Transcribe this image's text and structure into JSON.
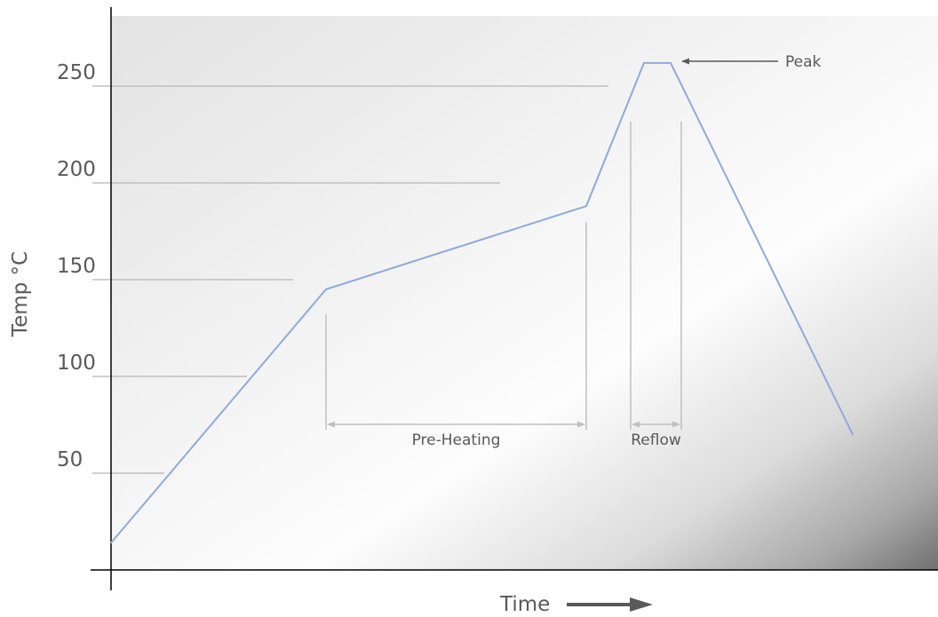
{
  "chart_data": {
    "type": "line",
    "title": "",
    "xlabel": "Time",
    "ylabel": "Temp °C",
    "ylim": [
      0,
      260
    ],
    "y_ticks": [
      50,
      100,
      150,
      200,
      250
    ],
    "x_ticks_shown": false,
    "grid": false,
    "series": [
      {
        "x": [
          0,
          242,
          535,
          600,
          630,
          835
        ],
        "y": [
          14,
          145,
          188,
          262,
          262,
          70
        ],
        "color": "#8faadc"
      }
    ],
    "annotations": [
      {
        "text": "Peak",
        "arrow": "points left to plateau"
      },
      {
        "text": "Pre-Heating",
        "span": [
          242,
          535
        ]
      },
      {
        "text": "Reflow",
        "span": [
          585,
          642
        ]
      }
    ],
    "colors": {
      "curve": "#8faadc",
      "axis": "#000000",
      "guide": "#bfbfbf",
      "text": "#595959",
      "time_arrow": "#595959"
    }
  }
}
